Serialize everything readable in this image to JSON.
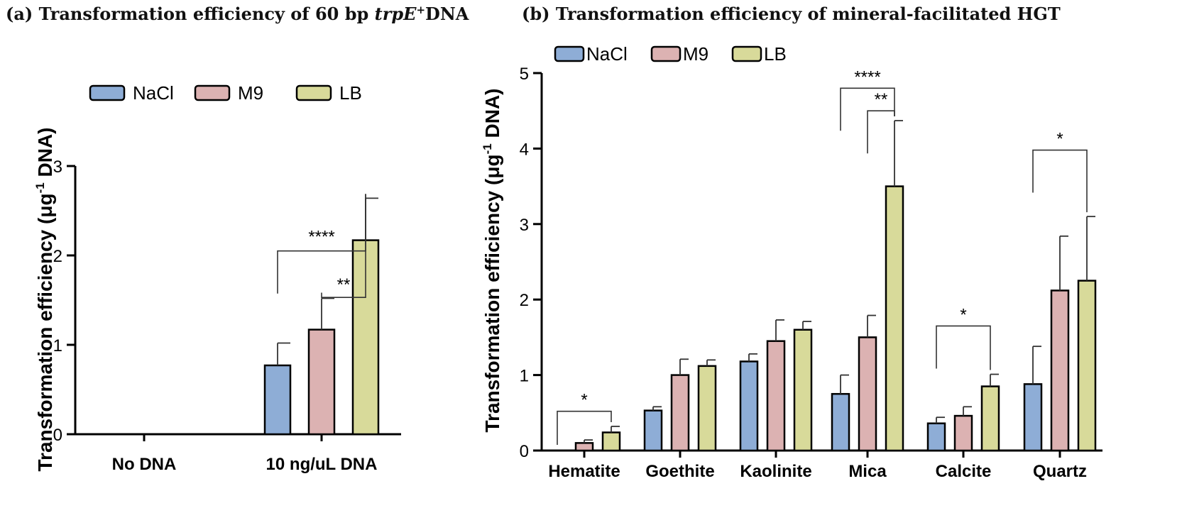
{
  "colors": {
    "NaCl": "#8eadd6",
    "M9": "#dcb2b2",
    "LB": "#d8da9a"
  },
  "chart_data": [
    {
      "type": "bar",
      "title_prefix": "(a) Transformation  efficiency of 60 bp ",
      "title_gene": "trpE",
      "title_sup": "+",
      "title_suffix": "DNA",
      "ylabel_main": "Transformation efficiency (μg",
      "ylabel_sup": "-1",
      "ylabel_end": " DNA)",
      "ylim": [
        0,
        3
      ],
      "yticks": [
        "0",
        "1",
        "2",
        "3"
      ],
      "categories": [
        "No DNA",
        "10 ng/uL DNA"
      ],
      "series": [
        {
          "name": "NaCl",
          "values": [
            0,
            0.77
          ],
          "errors": [
            0,
            0.25
          ]
        },
        {
          "name": "M9",
          "values": [
            0,
            1.17
          ],
          "errors": [
            0,
            0.35
          ]
        },
        {
          "name": "LB",
          "values": [
            0,
            2.17
          ],
          "errors": [
            0,
            0.47
          ]
        }
      ],
      "legend": [
        "NaCl",
        "M9",
        "LB"
      ],
      "annotations": [
        {
          "label": "****",
          "category": 1,
          "from": 0,
          "to": 2
        },
        {
          "label": "**",
          "category": 1,
          "from": 1,
          "to": 2
        }
      ]
    },
    {
      "type": "bar",
      "title_prefix": "(b) Transformation  efficiency of mineral-facilitated HGT",
      "ylabel_main": "Transformation efficiency (μg",
      "ylabel_sup": "-1",
      "ylabel_end": " DNA)",
      "ylim": [
        0,
        5
      ],
      "yticks": [
        "0",
        "1",
        "2",
        "3",
        "4",
        "5"
      ],
      "categories": [
        "Hematite",
        "Goethite",
        "Kaolinite",
        "Mica",
        "Calcite",
        "Quartz"
      ],
      "series": [
        {
          "name": "NaCl",
          "values": [
            0,
            0.53,
            1.18,
            0.75,
            0.36,
            0.88
          ],
          "errors": [
            0,
            0.05,
            0.1,
            0.25,
            0.08,
            0.5
          ]
        },
        {
          "name": "M9",
          "values": [
            0.1,
            1.0,
            1.45,
            1.5,
            0.46,
            2.12
          ],
          "errors": [
            0.04,
            0.21,
            0.28,
            0.29,
            0.12,
            0.72
          ]
        },
        {
          "name": "LB",
          "values": [
            0.24,
            1.12,
            1.6,
            3.5,
            0.85,
            2.25
          ],
          "errors": [
            0.08,
            0.08,
            0.11,
            0.87,
            0.16,
            0.85
          ]
        }
      ],
      "legend": [
        "NaCl",
        "M9",
        "LB"
      ],
      "annotations": [
        {
          "label": "*",
          "category": 0,
          "from": 0,
          "to": 2
        },
        {
          "label": "****",
          "category": 3,
          "from": 0,
          "to": 2
        },
        {
          "label": "**",
          "category": 3,
          "from": 1,
          "to": 2
        },
        {
          "label": "*",
          "category": 4,
          "from": 0,
          "to": 2
        },
        {
          "label": "*",
          "category": 5,
          "from": 0,
          "to": 2
        }
      ]
    }
  ]
}
